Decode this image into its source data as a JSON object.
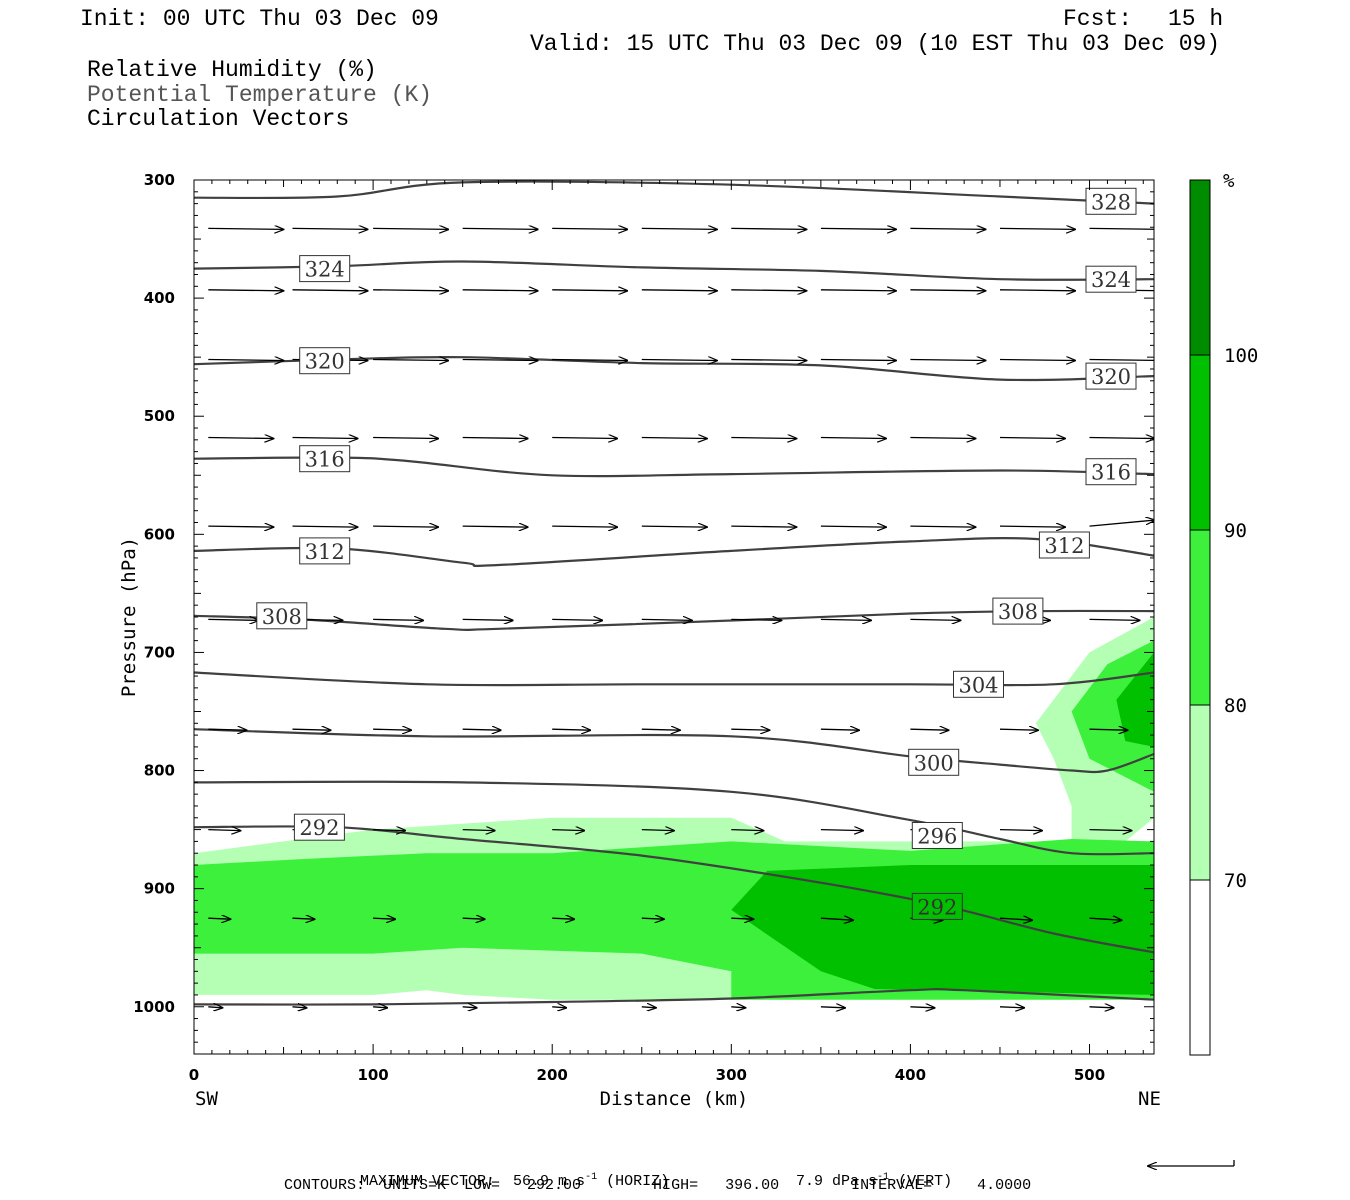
{
  "header": {
    "init": "Init: 00 UTC Thu 03 Dec 09",
    "fcst_label": "Fcst:",
    "fcst_value": "15 h",
    "valid": "Valid: 15 UTC Thu 03 Dec 09 (10 EST Thu 03 Dec 09)",
    "field1": "Relative Humidity (%)",
    "field2": "Potential Temperature (K)",
    "field3": "Circulation Vectors"
  },
  "footer": {
    "max_vector": "MAXIMUM VECTOR:  56.9 m s",
    "horiz": "(HORIZ)",
    "vert_val": "7.9 dPa s",
    "vert": "(VERT)",
    "contours": "CONTOURS:  UNITS=K  LOW=   292.00        HIGH=   396.00        INTERVAL=     4.0000",
    "exp": "-1"
  },
  "colors": {
    "rh70": "#b4ffb4",
    "rh80": "#3cf03c",
    "rh90": "#00c000",
    "rh100": "#008c00",
    "theta_line": "#404040",
    "axis": "#000000"
  },
  "chart_data": {
    "type": "cross-section",
    "x_label": "Distance (km)",
    "y_label": "Pressure (hPa)",
    "x_range": [
      0,
      536
    ],
    "y_range": [
      300,
      1040
    ],
    "y_scale": "linear, inverted",
    "x_ticks": [
      "0",
      "100",
      "200",
      "300",
      "400",
      "500"
    ],
    "y_ticks": [
      "300",
      "400",
      "500",
      "600",
      "700",
      "800",
      "900",
      "1000"
    ],
    "left_end": "SW",
    "right_end": "NE",
    "colorbar": {
      "unit": "%",
      "levels": [
        "70",
        "80",
        "90",
        "100"
      ]
    },
    "theta_contours": [
      {
        "label": "292",
        "points": [
          [
            0,
            998
          ],
          [
            100,
            998
          ],
          [
            200,
            996
          ],
          [
            300,
            993
          ],
          [
            400,
            986
          ],
          [
            430,
            986
          ],
          [
            536,
            994
          ]
        ],
        "labels": []
      },
      {
        "label": "292",
        "points": [
          [
            0,
            848
          ],
          [
            80,
            848
          ],
          [
            150,
            858
          ],
          [
            250,
            872
          ],
          [
            350,
            895
          ],
          [
            420,
            915
          ],
          [
            480,
            938
          ],
          [
            536,
            954
          ]
        ],
        "labels": [
          [
            70,
            848
          ],
          [
            415,
            915
          ]
        ]
      },
      {
        "label": "296",
        "points": [
          [
            0,
            810
          ],
          [
            150,
            810
          ],
          [
            300,
            818
          ],
          [
            400,
            842
          ],
          [
            450,
            858
          ],
          [
            490,
            870
          ],
          [
            536,
            870
          ]
        ],
        "labels": [
          [
            415,
            855
          ]
        ]
      },
      {
        "label": "300",
        "points": [
          [
            0,
            765
          ],
          [
            130,
            771
          ],
          [
            300,
            771
          ],
          [
            400,
            788
          ],
          [
            450,
            795
          ],
          [
            490,
            800
          ],
          [
            510,
            800
          ],
          [
            536,
            786
          ]
        ],
        "labels": [
          [
            413,
            793
          ]
        ]
      },
      {
        "label": "304",
        "points": [
          [
            0,
            717
          ],
          [
            130,
            727
          ],
          [
            250,
            727
          ],
          [
            400,
            727
          ],
          [
            480,
            727
          ],
          [
            536,
            717
          ]
        ],
        "labels": [
          [
            438,
            727
          ]
        ]
      },
      {
        "label": "308",
        "points": [
          [
            0,
            669
          ],
          [
            60,
            672
          ],
          [
            140,
            680
          ],
          [
            170,
            680
          ],
          [
            300,
            673
          ],
          [
            400,
            667
          ],
          [
            470,
            665
          ],
          [
            536,
            665
          ]
        ],
        "labels": [
          [
            49,
            669
          ],
          [
            460,
            665
          ]
        ]
      },
      {
        "label": "312",
        "points": [
          [
            0,
            614
          ],
          [
            80,
            612
          ],
          [
            150,
            624
          ],
          [
            170,
            626
          ],
          [
            300,
            614
          ],
          [
            400,
            606
          ],
          [
            470,
            604
          ],
          [
            536,
            618
          ]
        ],
        "labels": [
          [
            73,
            614
          ],
          [
            486,
            609
          ]
        ]
      },
      {
        "label": "316",
        "points": [
          [
            0,
            536
          ],
          [
            80,
            535
          ],
          [
            120,
            538
          ],
          [
            200,
            550
          ],
          [
            300,
            549
          ],
          [
            450,
            546
          ],
          [
            536,
            549
          ]
        ],
        "labels": [
          [
            73,
            536
          ],
          [
            512,
            547
          ]
        ]
      },
      {
        "label": "320",
        "points": [
          [
            0,
            456
          ],
          [
            80,
            452
          ],
          [
            150,
            450
          ],
          [
            250,
            455
          ],
          [
            350,
            457
          ],
          [
            450,
            469
          ],
          [
            536,
            466
          ]
        ],
        "labels": [
          [
            73,
            453
          ],
          [
            512,
            466
          ]
        ]
      },
      {
        "label": "324",
        "points": [
          [
            0,
            375
          ],
          [
            80,
            373
          ],
          [
            150,
            369
          ],
          [
            250,
            374
          ],
          [
            350,
            377
          ],
          [
            450,
            384
          ],
          [
            536,
            384
          ]
        ],
        "labels": [
          [
            73,
            375
          ],
          [
            512,
            384
          ]
        ]
      },
      {
        "label": "328",
        "points": [
          [
            0,
            315
          ],
          [
            80,
            314
          ],
          [
            150,
            302
          ],
          [
            300,
            304
          ],
          [
            450,
            314
          ],
          [
            536,
            320
          ]
        ],
        "labels": [
          [
            512,
            318
          ]
        ]
      }
    ],
    "vector_levels_hPa": [
      1000,
      925,
      850,
      765,
      672,
      593,
      518,
      452,
      393,
      341
    ],
    "vector_x_km": [
      8,
      55,
      100,
      150,
      200,
      250,
      300,
      350,
      400,
      450,
      500
    ],
    "rh_regions": [
      {
        "level": "70",
        "polygon": [
          [
            0,
            870
          ],
          [
            100,
            850
          ],
          [
            200,
            840
          ],
          [
            300,
            840
          ],
          [
            330,
            860
          ],
          [
            380,
            860
          ],
          [
            500,
            860
          ],
          [
            536,
            860
          ],
          [
            536,
            990
          ],
          [
            400,
            990
          ],
          [
            300,
            994
          ],
          [
            200,
            994
          ],
          [
            150,
            990
          ],
          [
            130,
            986
          ],
          [
            100,
            990
          ],
          [
            0,
            990
          ]
        ]
      },
      {
        "level": "70",
        "polygon": [
          [
            470,
            760
          ],
          [
            500,
            700
          ],
          [
            536,
            670
          ],
          [
            536,
            840
          ],
          [
            520,
            860
          ],
          [
            490,
            860
          ],
          [
            490,
            830
          ],
          [
            480,
            790
          ]
        ]
      },
      {
        "level": "80",
        "polygon": [
          [
            0,
            880
          ],
          [
            60,
            875
          ],
          [
            130,
            870
          ],
          [
            200,
            870
          ],
          [
            300,
            860
          ],
          [
            400,
            868
          ],
          [
            490,
            858
          ],
          [
            536,
            860
          ],
          [
            536,
            994
          ],
          [
            300,
            994
          ],
          [
            300,
            970
          ],
          [
            250,
            955
          ],
          [
            150,
            950
          ],
          [
            100,
            955
          ],
          [
            0,
            955
          ]
        ]
      },
      {
        "level": "80",
        "polygon": [
          [
            490,
            750
          ],
          [
            510,
            710
          ],
          [
            536,
            690
          ],
          [
            536,
            818
          ],
          [
            500,
            790
          ]
        ]
      },
      {
        "level": "90",
        "polygon": [
          [
            300,
            918
          ],
          [
            320,
            885
          ],
          [
            400,
            880
          ],
          [
            536,
            880
          ],
          [
            536,
            990
          ],
          [
            380,
            985
          ],
          [
            350,
            970
          ]
        ]
      },
      {
        "level": "90",
        "polygon": [
          [
            515,
            740
          ],
          [
            536,
            700
          ],
          [
            536,
            780
          ],
          [
            520,
            775
          ]
        ]
      }
    ]
  }
}
